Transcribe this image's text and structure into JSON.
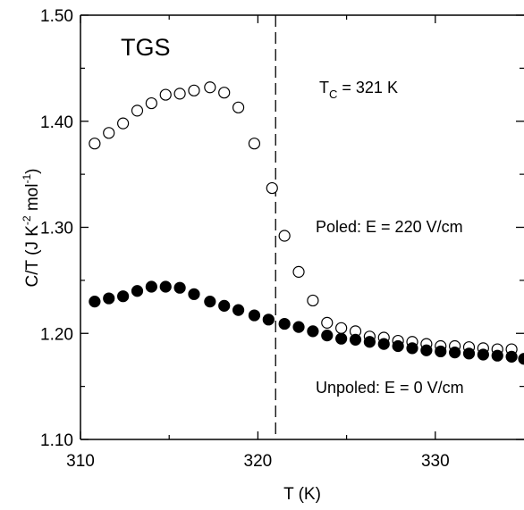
{
  "chart_data": {
    "type": "scatter",
    "title": "",
    "xlabel": "T (K)",
    "ylabel_parts": [
      "C/T (J K",
      "-2",
      " mol",
      "-1",
      ")"
    ],
    "xlim": [
      310,
      335
    ],
    "ylim": [
      1.1,
      1.5
    ],
    "xticks": [
      310,
      320,
      330
    ],
    "xtick_labels": [
      "310",
      "320",
      "330"
    ],
    "yticks": [
      1.1,
      1.2,
      1.3,
      1.4,
      1.5
    ],
    "ytick_labels": [
      "1.10",
      "1.20",
      "1.30",
      "1.40",
      "1.50"
    ],
    "vline_x": 321,
    "grid": false,
    "annotations": {
      "sample": "TGS",
      "tc_main": "T",
      "tc_sub": "C",
      "tc_rest": " = 321 K",
      "poled_label": "Poled: E = 220 V/cm",
      "unpoled_label": "Unpoled: E = 0 V/cm"
    },
    "series": [
      {
        "marker": "open-circle",
        "x": [
          310.8,
          311.6,
          312.4,
          313.2,
          314.0,
          314.8,
          315.6,
          316.4,
          317.3,
          318.1,
          318.9,
          319.8,
          320.8,
          321.5,
          322.3,
          323.1,
          323.9,
          324.7,
          325.5,
          326.3,
          327.1,
          327.9,
          328.7,
          329.5,
          330.3,
          331.1,
          331.9,
          332.7,
          333.5,
          334.3
        ],
        "y": [
          1.379,
          1.389,
          1.398,
          1.41,
          1.417,
          1.425,
          1.426,
          1.429,
          1.432,
          1.427,
          1.413,
          1.379,
          1.337,
          1.292,
          1.258,
          1.231,
          1.21,
          1.205,
          1.202,
          1.197,
          1.196,
          1.193,
          1.192,
          1.19,
          1.188,
          1.188,
          1.187,
          1.186,
          1.185,
          1.185
        ]
      },
      {
        "marker": "filled-circle",
        "x": [
          310.8,
          311.6,
          312.4,
          313.2,
          314.0,
          314.8,
          315.6,
          316.4,
          317.3,
          318.1,
          318.9,
          319.8,
          320.6,
          321.5,
          322.3,
          323.1,
          323.9,
          324.7,
          325.5,
          326.3,
          327.1,
          327.9,
          328.7,
          329.5,
          330.3,
          331.1,
          331.9,
          332.7,
          333.5,
          334.3,
          335.0
        ],
        "y": [
          1.23,
          1.233,
          1.235,
          1.24,
          1.244,
          1.244,
          1.243,
          1.237,
          1.23,
          1.226,
          1.222,
          1.217,
          1.213,
          1.209,
          1.206,
          1.202,
          1.198,
          1.195,
          1.194,
          1.192,
          1.19,
          1.188,
          1.186,
          1.184,
          1.183,
          1.182,
          1.181,
          1.18,
          1.179,
          1.178,
          1.176
        ]
      }
    ]
  }
}
